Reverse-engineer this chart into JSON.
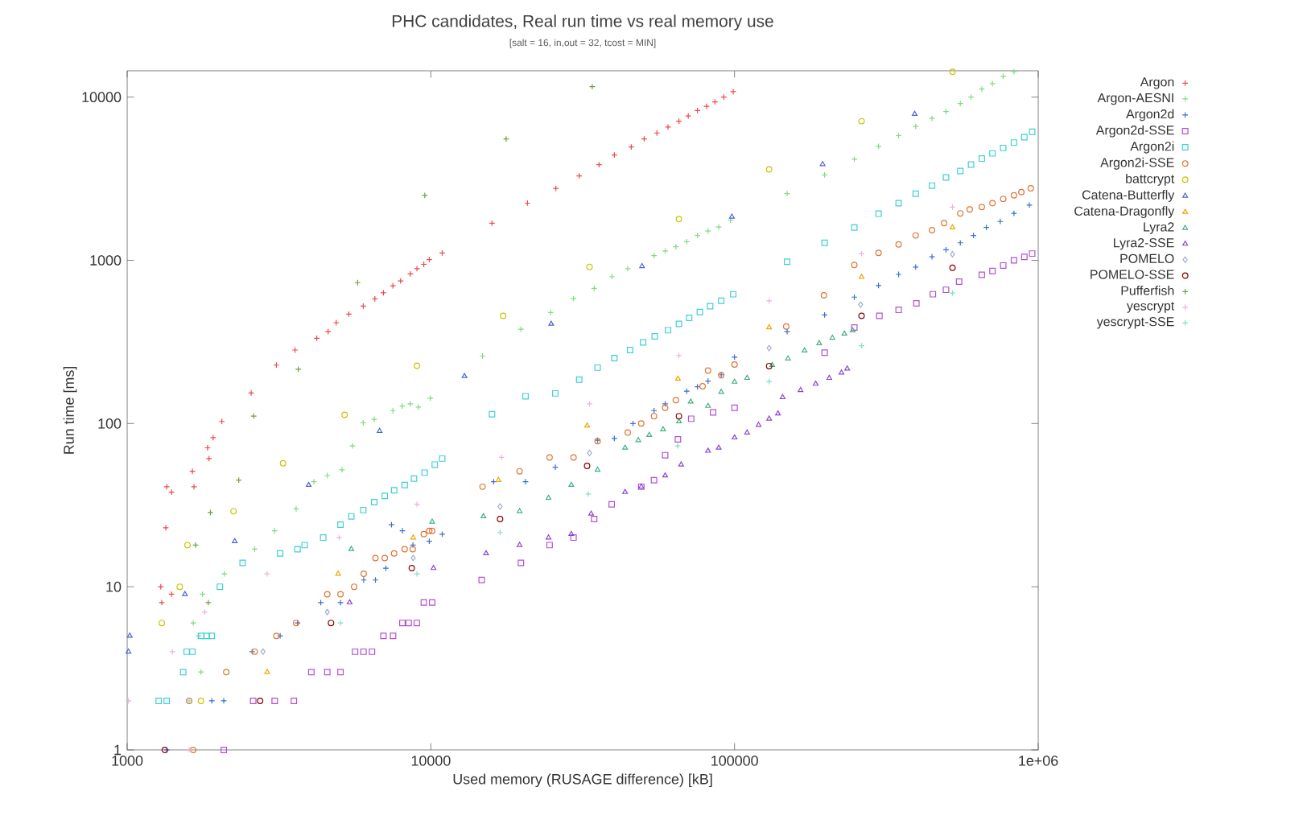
{
  "chart_data": {
    "type": "scatter",
    "title": "PHC candidates, Real run time vs real memory use",
    "subtitle": "[salt = 16, in,out = 32, tcost = MIN]",
    "xlabel": "Used memory (RUSAGE difference) [kB]",
    "ylabel": "Run time [ms]",
    "log": "xy",
    "grid": false,
    "legend": "right",
    "xlim": [
      1000,
      1000000
    ],
    "ylim": [
      1,
      14500
    ],
    "xticks": [
      1000,
      10000,
      100000,
      {
        "value": 1000000,
        "label": "1e+06"
      }
    ],
    "yticks": [
      1,
      10,
      100,
      1000,
      10000
    ],
    "series": [
      {
        "name": "Argon",
        "color": "#f04848",
        "marker": "cross",
        "x": [
          1290,
          1300,
          1340,
          1350,
          1400,
          1400,
          1640,
          1660,
          1840,
          1860,
          1920,
          2050,
          2560,
          3100,
          3570,
          4210,
          4590,
          4880,
          5370,
          5990,
          6540,
          6980,
          7500,
          7950,
          8560,
          9000,
          9480,
          9880,
          10900,
          15900,
          20800,
          25800,
          30800,
          35800,
          40200,
          45700,
          50400,
          55500,
          60400,
          65600,
          70400,
          75500,
          80900,
          86200,
          92200,
          99000
        ],
        "values": [
          10,
          8,
          23,
          41,
          9,
          38,
          51,
          41,
          71,
          61,
          82,
          103,
          154,
          228,
          282,
          333,
          366,
          415,
          468,
          524,
          581,
          633,
          699,
          748,
          825,
          889,
          945,
          1010,
          1110,
          1690,
          2240,
          2760,
          3290,
          3860,
          4420,
          4950,
          5550,
          6030,
          6550,
          7120,
          7670,
          8280,
          8790,
          9340,
          10000,
          10800
        ]
      },
      {
        "name": "Argon-AESNI",
        "color": "#80dc80",
        "marker": "cross",
        "x": [
          1650,
          1720,
          1750,
          1770,
          2090,
          2630,
          3060,
          3600,
          4120,
          4560,
          5100,
          5520,
          5990,
          6510,
          7500,
          8050,
          8560,
          9100,
          9960,
          14800,
          19800,
          24800,
          29500,
          34500,
          39500,
          44500,
          54300,
          59100,
          64100,
          69600,
          75500,
          81800,
          88700,
          97000,
          149000,
          198000,
          248000,
          298000,
          347000,
          395000,
          447000,
          497000,
          554000,
          601000,
          652000,
          707000,
          767000,
          832000
        ],
        "values": [
          6,
          5,
          3,
          9,
          12,
          17,
          22,
          30,
          44,
          48,
          52,
          73,
          101,
          106,
          120,
          128,
          132,
          126,
          143,
          259,
          378,
          479,
          583,
          673,
          795,
          889,
          1070,
          1140,
          1210,
          1300,
          1420,
          1510,
          1600,
          1760,
          2560,
          3340,
          4160,
          4990,
          5810,
          6610,
          7400,
          8150,
          9140,
          10000,
          11200,
          12100,
          13400,
          14300
        ]
      },
      {
        "name": "Argon2d",
        "color": "#3a6fd0",
        "marker": "cross",
        "x": [
          1350,
          1900,
          2080,
          2580,
          3190,
          3640,
          4340,
          5040,
          6010,
          6570,
          7110,
          7420,
          8060,
          8730,
          9880,
          10900,
          16100,
          20500,
          25700,
          35400,
          40200,
          46300,
          54300,
          59100,
          69600,
          75500,
          81800,
          90400,
          100000,
          149000,
          198000,
          248000,
          298000,
          347000,
          395000,
          447000,
          497000,
          554000,
          612000,
          675000,
          750000,
          832000,
          935000
        ],
        "values": [
          1,
          2,
          2,
          4,
          5,
          6,
          8,
          8,
          11,
          11,
          13,
          24,
          22,
          18,
          19,
          21,
          44,
          44,
          54,
          79,
          81,
          100,
          120,
          132,
          158,
          168,
          182,
          199,
          255,
          366,
          463,
          595,
          700,
          820,
          909,
          1050,
          1160,
          1280,
          1420,
          1590,
          1730,
          1940,
          2180
        ]
      },
      {
        "name": "Argon2d-SSE",
        "color": "#b450d2",
        "marker": "square",
        "x": [
          2080,
          2600,
          3060,
          3540,
          4040,
          4560,
          5040,
          5630,
          6000,
          6400,
          6980,
          7510,
          8060,
          8450,
          8990,
          9480,
          10100,
          14700,
          19800,
          24600,
          29500,
          34500,
          39400,
          49300,
          54300,
          59100,
          65100,
          72000,
          85000,
          100000,
          198000,
          248000,
          300000,
          347000,
          397000,
          450000,
          497000,
          549000,
          652000,
          707000,
          767000,
          832000,
          900000,
          955000
        ],
        "values": [
          1,
          2,
          2,
          2,
          3,
          3,
          3,
          4,
          4,
          4,
          5,
          5,
          6,
          6,
          6,
          8,
          8,
          11,
          14,
          18,
          20,
          26,
          32,
          41,
          45,
          64,
          80,
          107,
          117,
          125,
          272,
          388,
          457,
          497,
          545,
          620,
          660,
          740,
          815,
          860,
          930,
          1000,
          1050,
          1100
        ]
      },
      {
        "name": "Argon2i",
        "color": "#40d0d0",
        "marker": "square",
        "x": [
          1270,
          1350,
          1530,
          1570,
          1640,
          1750,
          1830,
          1900,
          2020,
          2400,
          3190,
          3640,
          3840,
          4420,
          5040,
          5470,
          5990,
          6510,
          7050,
          7570,
          8200,
          8800,
          9540,
          10300,
          10900,
          15900,
          20500,
          25700,
          30800,
          35400,
          40200,
          45300,
          50000,
          54600,
          60400,
          65600,
          70900,
          76900,
          83100,
          90400,
          99000,
          149000,
          198000,
          248000,
          298000,
          347000,
          395000,
          447000,
          497000,
          554000,
          601000,
          652000,
          707000,
          767000,
          832000,
          900000,
          955000
        ],
        "values": [
          2,
          2,
          3,
          4,
          4,
          5,
          5,
          5,
          10,
          14,
          16,
          17,
          18,
          20,
          24,
          27,
          29.5,
          33,
          36,
          39,
          42,
          46,
          50,
          56,
          61,
          114,
          147,
          153,
          186,
          220,
          252,
          282,
          314,
          342,
          373,
          408,
          444,
          482,
          524,
          565,
          620,
          980,
          1280,
          1590,
          1930,
          2240,
          2560,
          2870,
          3220,
          3530,
          3860,
          4200,
          4520,
          4880,
          5270,
          5680,
          6130
        ]
      },
      {
        "name": "Argon2i-SSE",
        "color": "#e07434",
        "marker": "circle",
        "x": [
          1600,
          1650,
          2120,
          2630,
          3100,
          3600,
          4560,
          5040,
          5590,
          6010,
          6570,
          7050,
          7570,
          8200,
          8720,
          9480,
          9880,
          10100,
          14800,
          19600,
          24600,
          29500,
          35400,
          44500,
          49300,
          54300,
          59100,
          64100,
          78500,
          81800,
          90400,
          100000,
          148000,
          197000,
          248000,
          298000,
          347000,
          395000,
          447000,
          490000,
          554000,
          595000,
          652000,
          707000,
          767000,
          832000,
          880000,
          945000
        ],
        "values": [
          2,
          1,
          3,
          4,
          5,
          6,
          9,
          9,
          10,
          12,
          15,
          15,
          16,
          17,
          17,
          21,
          22,
          22,
          41,
          51,
          62,
          62,
          78,
          88,
          100,
          111,
          125,
          139,
          169,
          211,
          198,
          230,
          393,
          610,
          936,
          1110,
          1250,
          1420,
          1530,
          1690,
          1940,
          2050,
          2120,
          2240,
          2380,
          2500,
          2620,
          2760
        ]
      },
      {
        "name": "battcrypt",
        "color": "#c8c400",
        "marker": "circle",
        "x": [
          1300,
          1490,
          1580,
          1750,
          2240,
          3260,
          5200,
          9000,
          17300,
          33300,
          65600,
          130000,
          262000,
          522000
        ],
        "values": [
          6,
          10,
          18,
          2,
          29,
          57,
          113,
          226,
          457,
          912,
          1790,
          3610,
          7120,
          14300
        ]
      },
      {
        "name": "Catena-Butterfly",
        "color": "#4a64d0",
        "marker": "triangle",
        "x": [
          1010,
          1020,
          1550,
          2260,
          3960,
          6780,
          12900,
          24900,
          49600,
          98000,
          195000,
          392000
        ],
        "values": [
          4,
          5,
          9,
          19,
          42,
          90,
          195,
          408,
          920,
          1850,
          3880,
          7880
        ]
      },
      {
        "name": "Catena-Dragonfly",
        "color": "#f0a400",
        "marker": "triangle",
        "x": [
          2890,
          4950,
          8750,
          16700,
          32700,
          65100,
          130000,
          262000,
          522000
        ],
        "values": [
          3,
          12,
          20,
          45,
          97,
          188,
          388,
          790,
          1590
        ]
      },
      {
        "name": "Lyra2",
        "color": "#40b080",
        "marker": "triangle",
        "x": [
          5470,
          10100,
          14900,
          19600,
          24400,
          29000,
          35400,
          43600,
          48200,
          52400,
          58200,
          65600,
          71700,
          81800,
          90400,
          100000,
          110000,
          133000,
          150000,
          170000,
          190000,
          210000,
          230000,
          245000
        ],
        "values": [
          17,
          25,
          27,
          29,
          35,
          42,
          52,
          71,
          79,
          85,
          92,
          103,
          136,
          128,
          156,
          180,
          190,
          228,
          250,
          280,
          310,
          335,
          355,
          372
        ]
      },
      {
        "name": "Lyra2-SSE",
        "color": "#8a44d4",
        "marker": "triangle",
        "x": [
          5400,
          10200,
          15200,
          19600,
          24400,
          29000,
          33700,
          43600,
          49300,
          59100,
          66700,
          81800,
          88700,
          100000,
          110000,
          120000,
          130000,
          139000,
          144000,
          165000,
          185000,
          205000,
          225000,
          235000
        ],
        "values": [
          8,
          13,
          16,
          18,
          20,
          21,
          28,
          38,
          41,
          48,
          56,
          68,
          71,
          82,
          88,
          98,
          107,
          115,
          145,
          160,
          175,
          190,
          205,
          217
        ]
      },
      {
        "name": "POMELO",
        "color": "#a0acd0",
        "marker": "diamond",
        "x": [
          2800,
          4560,
          8750,
          16900,
          33300,
          130000,
          260000,
          522000
        ],
        "values": [
          4,
          7,
          15,
          31,
          66,
          290,
          535,
          1090
        ]
      },
      {
        "name": "POMELO-SSE",
        "color": "#8a0000",
        "marker": "circle",
        "x": [
          1330,
          2740,
          4690,
          8650,
          16900,
          32700,
          65600,
          130000,
          262000,
          522000
        ],
        "values": [
          1,
          2,
          6,
          13,
          26,
          55,
          111,
          225,
          457,
          900
        ]
      },
      {
        "name": "Pufferfish",
        "color": "#70a040",
        "marker": "cross",
        "x": [
          1680,
          1850,
          1880,
          2330,
          2610,
          3660,
          5740,
          9550,
          17700,
          34000
        ],
        "values": [
          18,
          8,
          28.5,
          45,
          111,
          215,
          730,
          2500,
          5550,
          11600
        ]
      },
      {
        "name": "yescrypt",
        "color": "#f0b0e0",
        "marker": "cross",
        "x": [
          1010,
          1410,
          1600,
          1800,
          2890,
          4990,
          9000,
          17100,
          33300,
          65600,
          130000,
          262000,
          522000
        ],
        "values": [
          2,
          4,
          1,
          7,
          12,
          20,
          32,
          62,
          132,
          261,
          565,
          1100,
          2120
        ]
      },
      {
        "name": "yescrypt-SSE",
        "color": "#80e0c4",
        "marker": "cross",
        "x": [
          1600,
          5040,
          9000,
          16900,
          33000,
          65000,
          130000,
          262000,
          522000
        ],
        "values": [
          2,
          6,
          12,
          21.5,
          37,
          73,
          181,
          300,
          630
        ]
      }
    ]
  }
}
